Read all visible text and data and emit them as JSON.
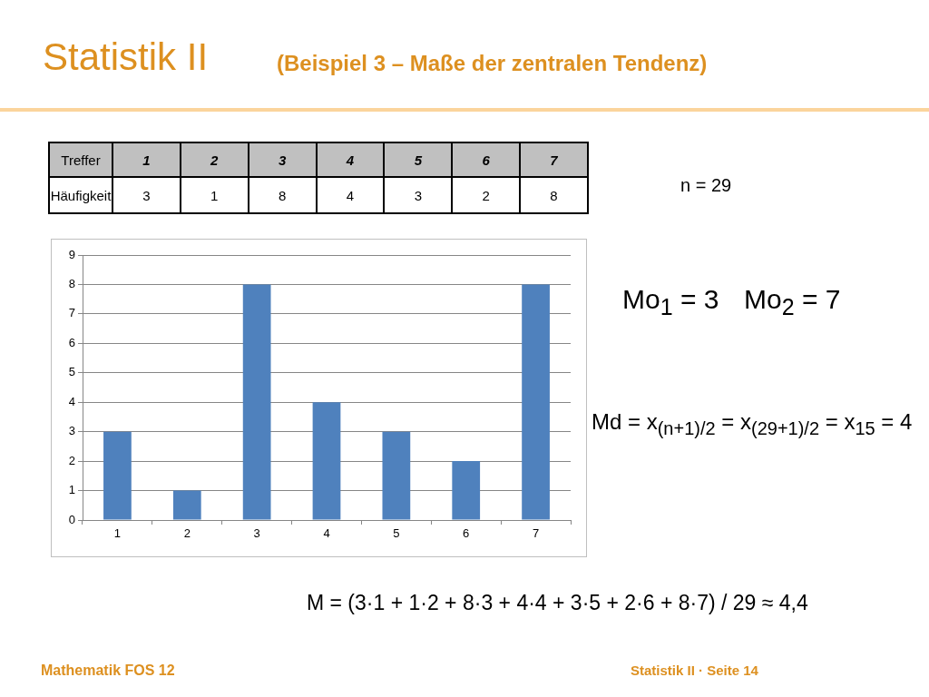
{
  "chart_data": {
    "type": "bar",
    "title": "Statistik II",
    "subtitle": "(Beispiel 3 – Maße der zentralen Tendenz)",
    "categories": [
      "1",
      "2",
      "3",
      "4",
      "5",
      "6",
      "7"
    ],
    "values": [
      3,
      1,
      8,
      4,
      3,
      2,
      8
    ],
    "color": "#4f81bd",
    "ylim": [
      0,
      9
    ],
    "yticks": [
      0,
      1,
      2,
      3,
      4,
      5,
      6,
      7,
      8,
      9
    ],
    "grid": "y",
    "data_labels": true,
    "annotations": [
      "Treffer",
      "Häufigkeit",
      "n = 29",
      "Mo$_{1}$ = 3",
      "Mo$_{2}$ = 7",
      "Md = x$_{(n+1)/2}$ = x$_{(29+1)/2}$ = x$_{15}$ = 4",
      "M = (3·1 + 1·2 + 8·3 + 4·4 + 3·5 + 2·6 + 8·7) / 29 ≈ 4,4",
      "Mathematik FOS 12",
      "Statistik II · Seite 14"
    ]
  }
}
